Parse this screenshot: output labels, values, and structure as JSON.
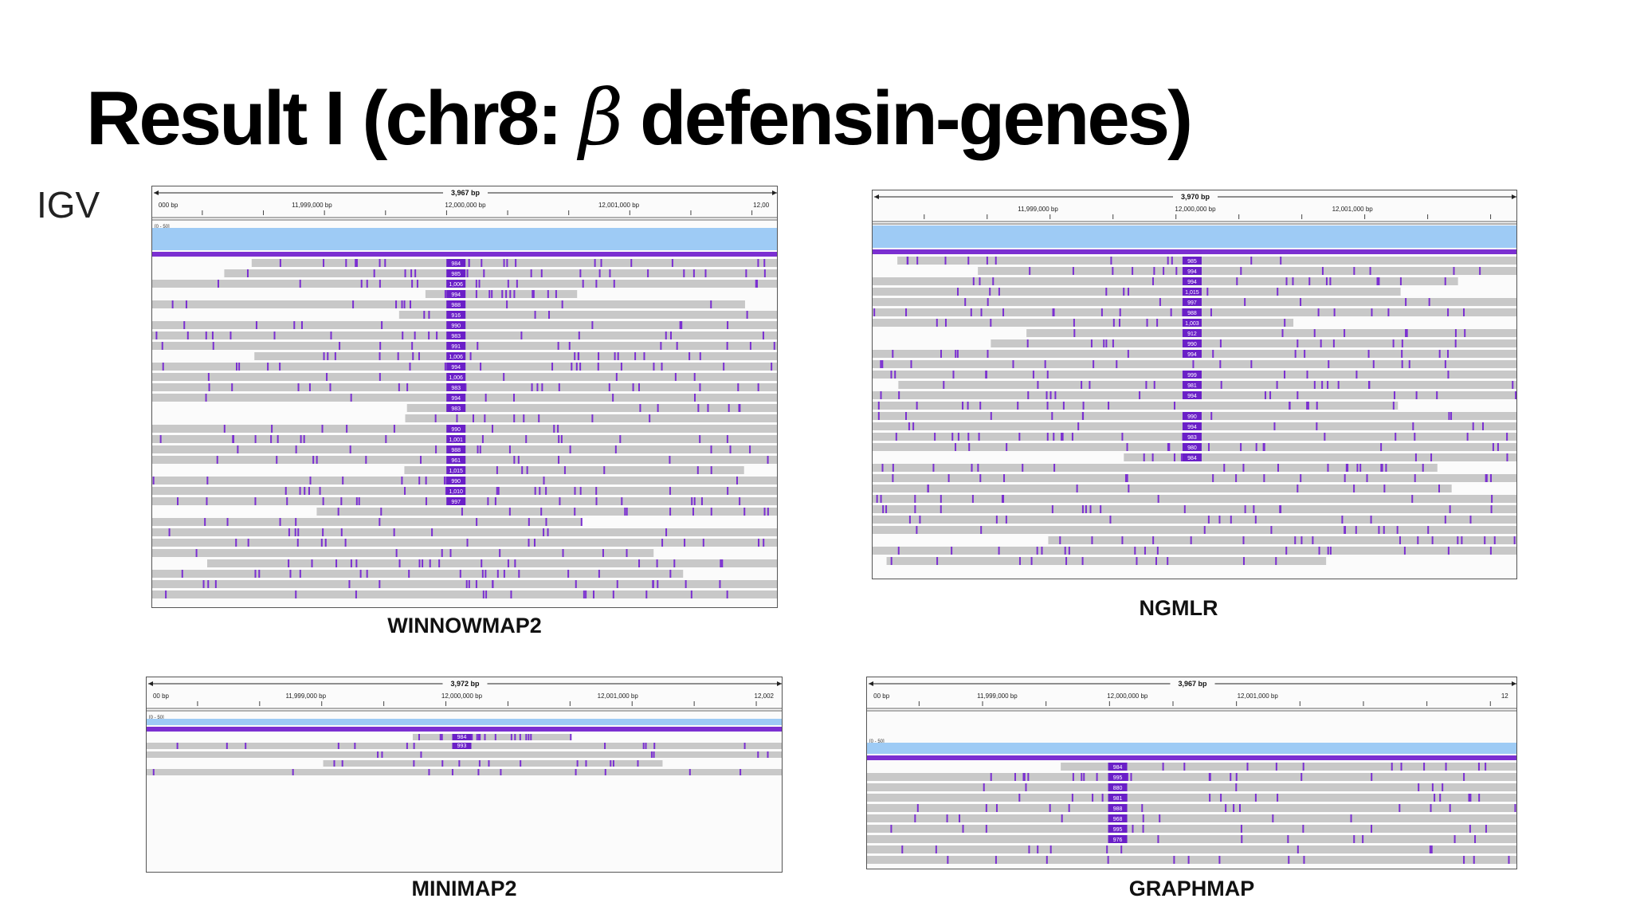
{
  "slide": {
    "title_main": "Result I (chr8: ",
    "title_beta": "β",
    "title_end": " defensin-genes)",
    "side_label": "IGV"
  },
  "colors": {
    "coverage": "#9ecbf5",
    "read": "#c8c8c8",
    "insertion": "#7b2fd1",
    "dark_purple": "#6a1fc7"
  },
  "panels": [
    {
      "id": "winnowmap2",
      "caption": "WINNOWMAP2",
      "span": "3,967 bp",
      "range": "[0 - 50]",
      "ticks": [
        "000 bp",
        "11,999,000 bp",
        "12,000,000 bp",
        "12,001,000 bp",
        "12,00"
      ],
      "insertions": [
        "984",
        "985",
        "1,006",
        "994",
        "988",
        "916",
        "990",
        "983",
        "991",
        "1,006",
        "994",
        "1,006",
        "983",
        "994",
        "983",
        "990",
        "1,001",
        "988",
        "961",
        "1,015",
        "990",
        "1,010",
        "997"
      ]
    },
    {
      "id": "ngmlr",
      "caption": "NGMLR",
      "span": "3,970 bp",
      "range": "",
      "ticks": [
        "11,999,000 bp",
        "12,000,000 bp",
        "12,001,000 bp"
      ],
      "insertions": [
        "985",
        "994",
        "994",
        "1,015",
        "997",
        "988",
        "1,003",
        "912",
        "990",
        "994",
        "999",
        "981",
        "994",
        "990",
        "994",
        "983",
        "980",
        "984"
      ]
    },
    {
      "id": "minimap2",
      "caption": "MINIMAP2",
      "span": "3,972 bp",
      "range": "[0 - 50]",
      "ticks": [
        "00 bp",
        "11,999,000 bp",
        "12,000,000 bp",
        "12,001,000 bp",
        "12,002"
      ],
      "insertions": [
        "984",
        "993"
      ]
    },
    {
      "id": "graphmap",
      "caption": "GRAPHMAP",
      "span": "3,967 bp",
      "range": "[0 - 50]",
      "ticks": [
        "00 bp",
        "11,999,000 bp",
        "12,000,000 bp",
        "12,001,000 bp",
        "12"
      ],
      "insertions": [
        "984",
        "995",
        "880",
        "981",
        "988",
        "968",
        "995",
        "976"
      ]
    }
  ]
}
